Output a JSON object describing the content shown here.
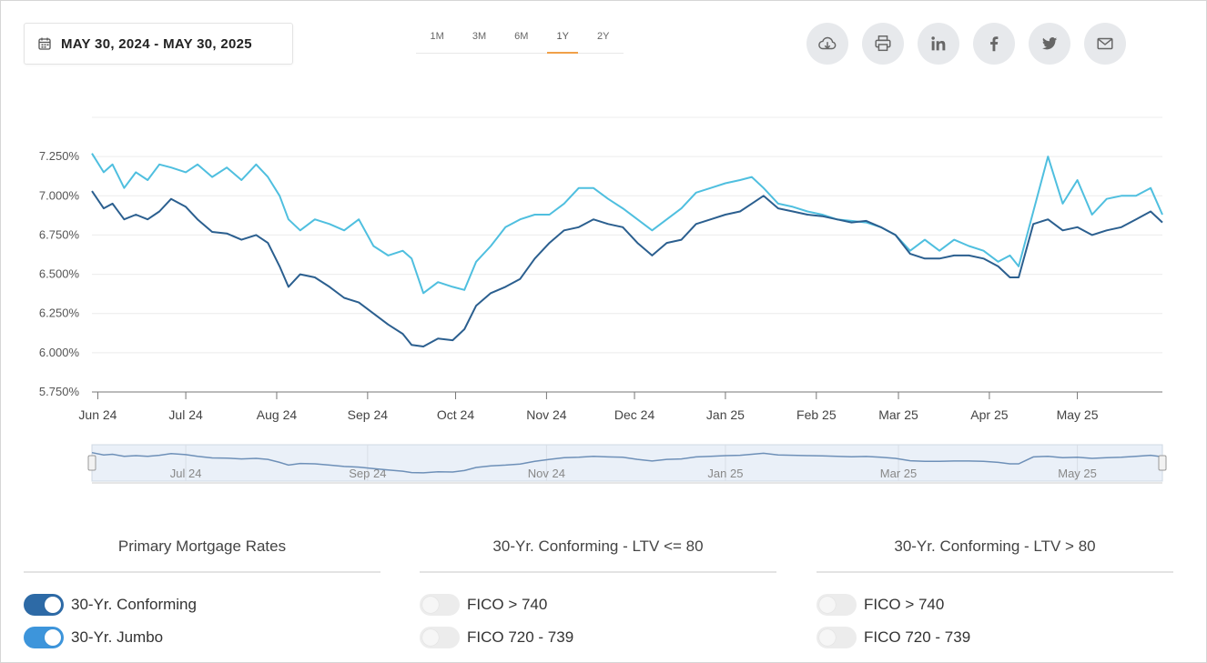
{
  "date_range": {
    "label": "MAY 30, 2024 - MAY 30, 2025",
    "icon": "calendar-icon"
  },
  "ranges": [
    {
      "label": "1M",
      "active": false
    },
    {
      "label": "3M",
      "active": false
    },
    {
      "label": "6M",
      "active": false
    },
    {
      "label": "1Y",
      "active": true
    },
    {
      "label": "2Y",
      "active": false
    }
  ],
  "share_buttons": [
    {
      "icon": "cloud-download-icon"
    },
    {
      "icon": "printer-icon"
    },
    {
      "icon": "linkedin-icon"
    },
    {
      "icon": "facebook-icon"
    },
    {
      "icon": "twitter-icon"
    },
    {
      "icon": "email-icon"
    }
  ],
  "colors": {
    "conforming": "#2b5f8f",
    "jumbo": "#4fbfdf",
    "toggle_conforming": "#2d6aa6",
    "toggle_jumbo": "#3d95db",
    "active_range": "#f0a048"
  },
  "chart_data": {
    "type": "line",
    "y_ticks": [
      "5.750%",
      "6.000%",
      "6.250%",
      "6.500%",
      "6.750%",
      "7.000%",
      "7.250%"
    ],
    "y_tick_values": [
      5.75,
      6.0,
      6.25,
      6.5,
      6.75,
      7.0,
      7.25
    ],
    "ylim": [
      5.75,
      7.5
    ],
    "xlim": [
      "2024-05-30",
      "2025-05-30"
    ],
    "x_ticks": [
      {
        "label": "Jun 24",
        "date": "2024-06-01"
      },
      {
        "label": "Jul 24",
        "date": "2024-07-01"
      },
      {
        "label": "Aug 24",
        "date": "2024-08-01"
      },
      {
        "label": "Sep 24",
        "date": "2024-09-01"
      },
      {
        "label": "Oct 24",
        "date": "2024-10-01"
      },
      {
        "label": "Nov 24",
        "date": "2024-11-01"
      },
      {
        "label": "Dec 24",
        "date": "2024-12-01"
      },
      {
        "label": "Jan 25",
        "date": "2025-01-01"
      },
      {
        "label": "Feb 25",
        "date": "2025-02-01"
      },
      {
        "label": "Mar 25",
        "date": "2025-03-01"
      },
      {
        "label": "Apr 25",
        "date": "2025-04-01"
      },
      {
        "label": "May 25",
        "date": "2025-05-01"
      }
    ],
    "navigator_ticks": [
      {
        "label": "Jul 24",
        "date": "2024-07-01"
      },
      {
        "label": "Sep 24",
        "date": "2024-09-01"
      },
      {
        "label": "Nov 24",
        "date": "2024-11-01"
      },
      {
        "label": "Jan 25",
        "date": "2025-01-01"
      },
      {
        "label": "Mar 25",
        "date": "2025-03-01"
      },
      {
        "label": "May 25",
        "date": "2025-05-01"
      }
    ],
    "grid": true,
    "series": [
      {
        "name": "30-Yr. Jumbo",
        "x": [
          "2024-05-30",
          "2024-06-03",
          "2024-06-06",
          "2024-06-10",
          "2024-06-14",
          "2024-06-18",
          "2024-06-22",
          "2024-06-26",
          "2024-07-01",
          "2024-07-05",
          "2024-07-10",
          "2024-07-15",
          "2024-07-20",
          "2024-07-25",
          "2024-07-29",
          "2024-08-02",
          "2024-08-05",
          "2024-08-09",
          "2024-08-14",
          "2024-08-19",
          "2024-08-24",
          "2024-08-29",
          "2024-09-03",
          "2024-09-08",
          "2024-09-13",
          "2024-09-16",
          "2024-09-20",
          "2024-09-25",
          "2024-09-30",
          "2024-10-04",
          "2024-10-08",
          "2024-10-13",
          "2024-10-18",
          "2024-10-23",
          "2024-10-28",
          "2024-11-02",
          "2024-11-07",
          "2024-11-12",
          "2024-11-17",
          "2024-11-22",
          "2024-11-27",
          "2024-12-02",
          "2024-12-07",
          "2024-12-12",
          "2024-12-17",
          "2024-12-22",
          "2024-12-27",
          "2025-01-01",
          "2025-01-06",
          "2025-01-10",
          "2025-01-14",
          "2025-01-19",
          "2025-01-24",
          "2025-01-29",
          "2025-02-03",
          "2025-02-08",
          "2025-02-13",
          "2025-02-18",
          "2025-02-23",
          "2025-02-28",
          "2025-03-05",
          "2025-03-10",
          "2025-03-15",
          "2025-03-20",
          "2025-03-25",
          "2025-03-30",
          "2025-04-04",
          "2025-04-08",
          "2025-04-11",
          "2025-04-16",
          "2025-04-21",
          "2025-04-26",
          "2025-05-01",
          "2025-05-06",
          "2025-05-11",
          "2025-05-16",
          "2025-05-21",
          "2025-05-26",
          "2025-05-30"
        ],
        "values": [
          7.27,
          7.15,
          7.2,
          7.05,
          7.15,
          7.1,
          7.2,
          7.18,
          7.15,
          7.2,
          7.12,
          7.18,
          7.1,
          7.2,
          7.12,
          7.0,
          6.85,
          6.78,
          6.85,
          6.82,
          6.78,
          6.85,
          6.68,
          6.62,
          6.65,
          6.6,
          6.38,
          6.45,
          6.42,
          6.4,
          6.58,
          6.68,
          6.8,
          6.85,
          6.88,
          6.88,
          6.95,
          7.05,
          7.05,
          6.98,
          6.92,
          6.85,
          6.78,
          6.85,
          6.92,
          7.02,
          7.05,
          7.08,
          7.1,
          7.12,
          7.05,
          6.95,
          6.93,
          6.9,
          6.88,
          6.85,
          6.84,
          6.83,
          6.8,
          6.75,
          6.65,
          6.72,
          6.65,
          6.72,
          6.68,
          6.65,
          6.58,
          6.62,
          6.55,
          6.9,
          7.25,
          6.95,
          7.1,
          6.88,
          6.98,
          7.0,
          7.0,
          7.05,
          6.88
        ]
      },
      {
        "name": "30-Yr. Conforming",
        "x": [
          "2024-05-30",
          "2024-06-03",
          "2024-06-06",
          "2024-06-10",
          "2024-06-14",
          "2024-06-18",
          "2024-06-22",
          "2024-06-26",
          "2024-07-01",
          "2024-07-05",
          "2024-07-10",
          "2024-07-15",
          "2024-07-20",
          "2024-07-25",
          "2024-07-29",
          "2024-08-02",
          "2024-08-05",
          "2024-08-09",
          "2024-08-14",
          "2024-08-19",
          "2024-08-24",
          "2024-08-29",
          "2024-09-03",
          "2024-09-08",
          "2024-09-13",
          "2024-09-16",
          "2024-09-20",
          "2024-09-25",
          "2024-09-30",
          "2024-10-04",
          "2024-10-08",
          "2024-10-13",
          "2024-10-18",
          "2024-10-23",
          "2024-10-28",
          "2024-11-02",
          "2024-11-07",
          "2024-11-12",
          "2024-11-17",
          "2024-11-22",
          "2024-11-27",
          "2024-12-02",
          "2024-12-07",
          "2024-12-12",
          "2024-12-17",
          "2024-12-22",
          "2024-12-27",
          "2025-01-01",
          "2025-01-06",
          "2025-01-10",
          "2025-01-14",
          "2025-01-19",
          "2025-01-24",
          "2025-01-29",
          "2025-02-03",
          "2025-02-08",
          "2025-02-13",
          "2025-02-18",
          "2025-02-23",
          "2025-02-28",
          "2025-03-05",
          "2025-03-10",
          "2025-03-15",
          "2025-03-20",
          "2025-03-25",
          "2025-03-30",
          "2025-04-04",
          "2025-04-08",
          "2025-04-11",
          "2025-04-16",
          "2025-04-21",
          "2025-04-26",
          "2025-05-01",
          "2025-05-06",
          "2025-05-11",
          "2025-05-16",
          "2025-05-21",
          "2025-05-26",
          "2025-05-30"
        ],
        "values": [
          7.03,
          6.92,
          6.95,
          6.85,
          6.88,
          6.85,
          6.9,
          6.98,
          6.93,
          6.85,
          6.77,
          6.76,
          6.72,
          6.75,
          6.7,
          6.55,
          6.42,
          6.5,
          6.48,
          6.42,
          6.35,
          6.32,
          6.25,
          6.18,
          6.12,
          6.05,
          6.04,
          6.09,
          6.08,
          6.15,
          6.3,
          6.38,
          6.42,
          6.47,
          6.6,
          6.7,
          6.78,
          6.8,
          6.85,
          6.82,
          6.8,
          6.7,
          6.62,
          6.7,
          6.72,
          6.82,
          6.85,
          6.88,
          6.9,
          6.95,
          7.0,
          6.92,
          6.9,
          6.88,
          6.87,
          6.85,
          6.83,
          6.84,
          6.8,
          6.75,
          6.63,
          6.6,
          6.6,
          6.62,
          6.62,
          6.6,
          6.55,
          6.48,
          6.48,
          6.82,
          6.85,
          6.78,
          6.8,
          6.75,
          6.78,
          6.8,
          6.85,
          6.9,
          6.83
        ]
      }
    ]
  },
  "legend": {
    "columns": [
      {
        "title": "Primary Mortgage Rates",
        "items": [
          {
            "label": "30-Yr. Conforming",
            "on": true,
            "color": "#2d6aa6"
          },
          {
            "label": "30-Yr. Jumbo",
            "on": true,
            "color": "#3d95db"
          }
        ]
      },
      {
        "title": "30-Yr. Conforming - LTV <= 80",
        "items": [
          {
            "label": "FICO > 740",
            "on": false
          },
          {
            "label": "FICO 720 - 739",
            "on": false
          }
        ]
      },
      {
        "title": "30-Yr. Conforming - LTV > 80",
        "items": [
          {
            "label": "FICO > 740",
            "on": false
          },
          {
            "label": "FICO 720 - 739",
            "on": false
          }
        ]
      }
    ]
  }
}
